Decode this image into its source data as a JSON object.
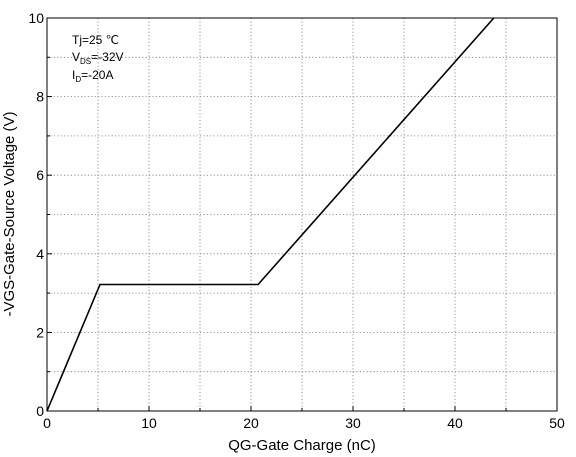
{
  "chart_data": {
    "type": "line",
    "title": "",
    "xlabel": "QG-Gate Charge (nC)",
    "ylabel": "-VGS-Gate-Source Voltage (V)",
    "xlim": [
      0,
      50
    ],
    "ylim": [
      0,
      10
    ],
    "x_major_ticks": [
      0,
      10,
      20,
      30,
      40,
      50
    ],
    "y_major_ticks": [
      0,
      2,
      4,
      6,
      8,
      10
    ],
    "x_minor_step": 5,
    "y_minor_step": 1,
    "grid": true,
    "series": [
      {
        "points": [
          [
            0,
            0
          ],
          [
            5.2,
            3.22
          ],
          [
            20.7,
            3.22
          ],
          [
            43.8,
            10
          ]
        ],
        "color": "#000000"
      }
    ],
    "annotations": [
      {
        "main": "Tj=25 ℃",
        "sub": "",
        "suffix": ""
      },
      {
        "main": "V",
        "sub": "DS",
        "suffix": "=-32V"
      },
      {
        "main": "I",
        "sub": "D",
        "suffix": "=-20A"
      }
    ]
  }
}
